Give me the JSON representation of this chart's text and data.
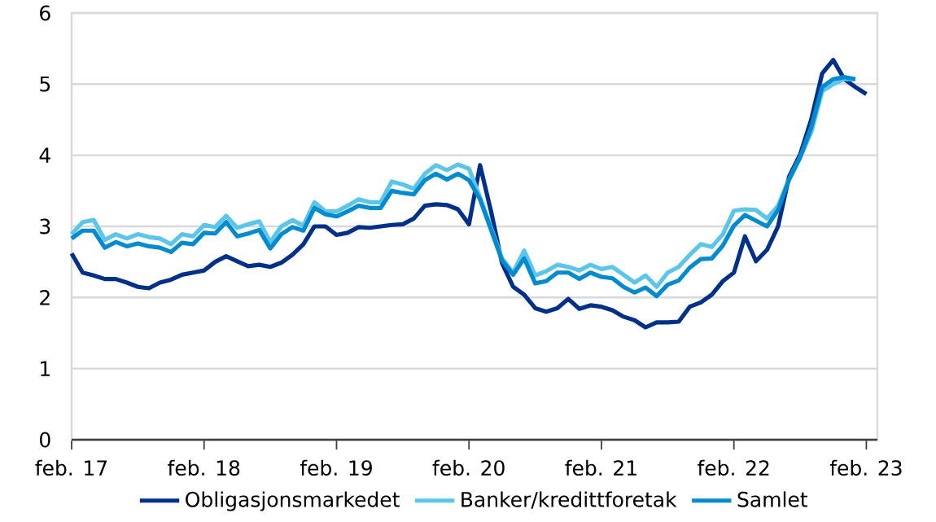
{
  "chart_data": {
    "type": "line",
    "xlim": [
      "2017-02",
      "2023-03"
    ],
    "x": [
      "2017-02",
      "2017-03",
      "2017-04",
      "2017-05",
      "2017-06",
      "2017-07",
      "2017-08",
      "2017-09",
      "2017-10",
      "2017-11",
      "2017-12",
      "2018-01",
      "2018-02",
      "2018-03",
      "2018-04",
      "2018-05",
      "2018-06",
      "2018-07",
      "2018-08",
      "2018-09",
      "2018-10",
      "2018-11",
      "2018-12",
      "2019-01",
      "2019-02",
      "2019-03",
      "2019-04",
      "2019-05",
      "2019-06",
      "2019-07",
      "2019-08",
      "2019-09",
      "2019-10",
      "2019-11",
      "2019-12",
      "2020-01",
      "2020-02",
      "2020-03",
      "2020-04",
      "2020-05",
      "2020-06",
      "2020-07",
      "2020-08",
      "2020-09",
      "2020-10",
      "2020-11",
      "2020-12",
      "2021-01",
      "2021-02",
      "2021-03",
      "2021-04",
      "2021-05",
      "2021-06",
      "2021-07",
      "2021-08",
      "2021-09",
      "2021-10",
      "2021-11",
      "2021-12",
      "2022-01",
      "2022-02",
      "2022-03",
      "2022-04",
      "2022-05",
      "2022-06",
      "2022-07",
      "2022-08",
      "2022-09",
      "2022-10",
      "2022-11",
      "2022-12",
      "2023-01",
      "2023-02"
    ],
    "xticks": [
      {
        "value": "2017-02",
        "label": "feb. 17"
      },
      {
        "value": "2018-02",
        "label": "feb. 18"
      },
      {
        "value": "2019-02",
        "label": "feb. 19"
      },
      {
        "value": "2020-02",
        "label": "feb. 20"
      },
      {
        "value": "2021-02",
        "label": "feb. 21"
      },
      {
        "value": "2022-02",
        "label": "feb. 22"
      },
      {
        "value": "2023-02",
        "label": "feb. 23"
      }
    ],
    "ylim": [
      0,
      6
    ],
    "yticks": [
      0,
      1,
      2,
      3,
      4,
      5,
      6
    ],
    "grid": "y",
    "legend": "bottom",
    "marker": "none",
    "line_style": "solid",
    "series": [
      {
        "name": "Obligasjonsmarkedet",
        "color": "#00308a",
        "values": [
          2.62,
          2.35,
          2.31,
          2.26,
          2.26,
          2.21,
          2.15,
          2.13,
          2.21,
          2.25,
          2.32,
          2.35,
          2.38,
          2.5,
          2.58,
          2.51,
          2.44,
          2.46,
          2.43,
          2.49,
          2.6,
          2.75,
          3.0,
          3.0,
          2.88,
          2.91,
          2.99,
          2.98,
          3.0,
          3.02,
          3.03,
          3.11,
          3.29,
          3.31,
          3.3,
          3.24,
          3.03,
          3.86,
          3.21,
          2.48,
          2.15,
          2.04,
          1.85,
          1.8,
          1.85,
          1.98,
          1.84,
          1.89,
          1.87,
          1.82,
          1.73,
          1.68,
          1.58,
          1.65,
          1.65,
          1.66,
          1.87,
          1.93,
          2.04,
          2.23,
          2.35,
          2.86,
          2.51,
          2.67,
          3.0,
          3.7,
          4.01,
          4.5,
          5.15,
          5.34,
          5.07,
          4.96,
          4.86
        ]
      },
      {
        "name": "Banker/kredittforetak",
        "color": "#5bc5ea",
        "values": [
          2.89,
          3.06,
          3.09,
          2.81,
          2.89,
          2.83,
          2.89,
          2.85,
          2.83,
          2.75,
          2.89,
          2.86,
          3.02,
          2.99,
          3.15,
          2.98,
          3.03,
          3.07,
          2.78,
          3.0,
          3.09,
          3.01,
          3.34,
          3.21,
          3.21,
          3.29,
          3.38,
          3.34,
          3.34,
          3.63,
          3.59,
          3.53,
          3.74,
          3.86,
          3.79,
          3.87,
          3.81,
          3.41,
          2.98,
          2.55,
          2.35,
          2.66,
          2.31,
          2.37,
          2.46,
          2.43,
          2.38,
          2.46,
          2.4,
          2.43,
          2.32,
          2.21,
          2.31,
          2.15,
          2.35,
          2.43,
          2.6,
          2.75,
          2.71,
          2.89,
          3.22,
          3.24,
          3.23,
          3.11,
          3.29,
          3.66,
          3.97,
          4.32,
          4.9,
          5.0,
          5.07,
          5.07,
          null
        ]
      },
      {
        "name": "Samlet",
        "color": "#008bd0",
        "values": [
          2.83,
          2.94,
          2.94,
          2.7,
          2.78,
          2.72,
          2.76,
          2.72,
          2.7,
          2.64,
          2.77,
          2.75,
          2.91,
          2.9,
          3.06,
          2.86,
          2.9,
          2.95,
          2.69,
          2.89,
          2.99,
          2.94,
          3.26,
          3.17,
          3.14,
          3.21,
          3.29,
          3.26,
          3.26,
          3.5,
          3.47,
          3.45,
          3.65,
          3.74,
          3.66,
          3.74,
          3.65,
          3.38,
          2.95,
          2.52,
          2.32,
          2.55,
          2.2,
          2.23,
          2.35,
          2.35,
          2.26,
          2.35,
          2.29,
          2.27,
          2.15,
          2.07,
          2.14,
          2.02,
          2.18,
          2.24,
          2.42,
          2.54,
          2.55,
          2.73,
          3.01,
          3.16,
          3.08,
          3.0,
          3.23,
          3.66,
          3.97,
          4.39,
          4.96,
          5.07,
          5.1,
          5.07,
          null
        ]
      }
    ]
  }
}
